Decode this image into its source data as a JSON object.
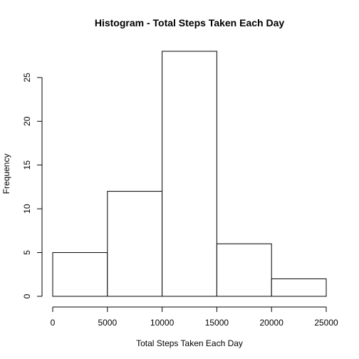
{
  "chart_data": {
    "type": "bar",
    "title": "Histogram - Total Steps Taken Each Day",
    "xlabel": "Total Steps Taken Each Day",
    "ylabel": "Frequency",
    "bins": [
      {
        "from": 0,
        "to": 5000,
        "count": 5
      },
      {
        "from": 5000,
        "to": 10000,
        "count": 12
      },
      {
        "from": 10000,
        "to": 15000,
        "count": 28
      },
      {
        "from": 15000,
        "to": 20000,
        "count": 6
      },
      {
        "from": 20000,
        "to": 25000,
        "count": 2
      }
    ],
    "xlim": [
      0,
      25000
    ],
    "ylim": [
      0,
      28
    ],
    "xticks": [
      0,
      5000,
      10000,
      15000,
      20000,
      25000
    ],
    "yticks": [
      0,
      5,
      10,
      15,
      20,
      25
    ],
    "grid": false
  }
}
